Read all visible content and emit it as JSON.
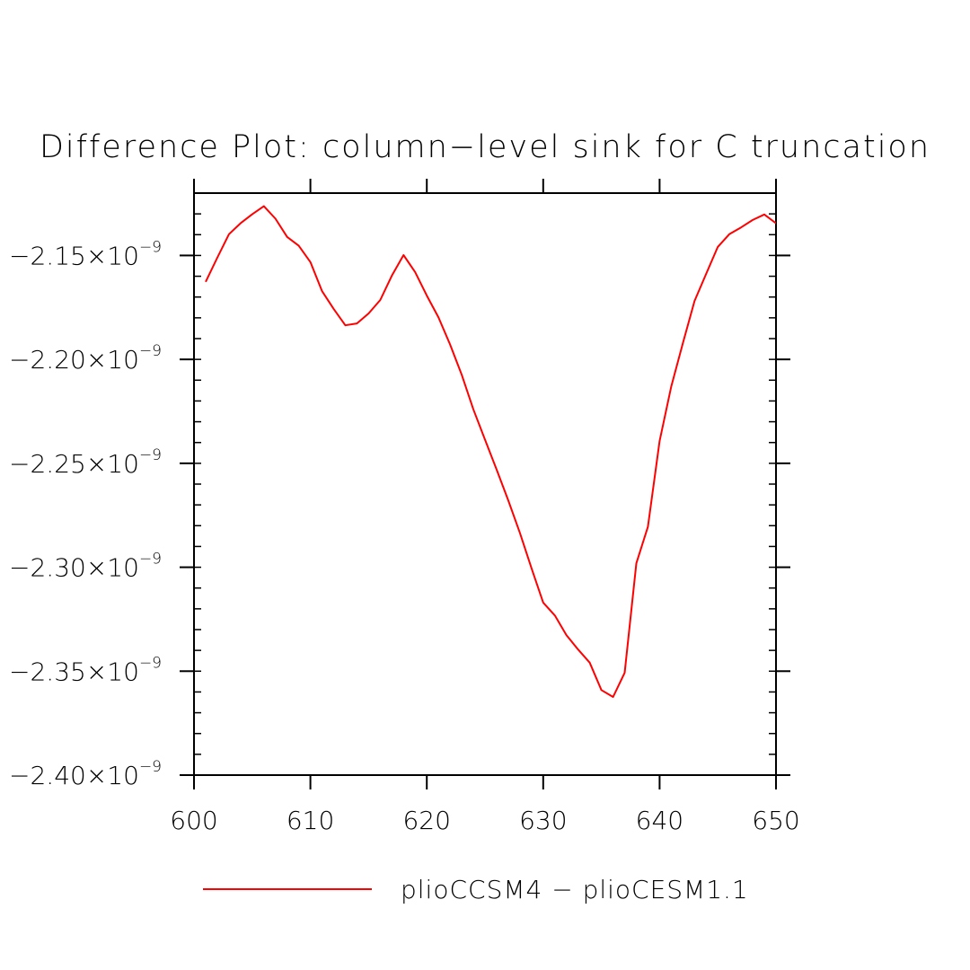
{
  "chart_data": {
    "type": "line",
    "title": "Difference Plot: column−level sink for C truncation",
    "xlabel": "",
    "ylabel": "",
    "xlim": [
      600,
      650
    ],
    "ylim": [
      -2.4e-09,
      -2.12e-09
    ],
    "x_ticks": [
      600,
      610,
      620,
      630,
      640,
      650
    ],
    "x_tick_labels": [
      "600",
      "610",
      "620",
      "630",
      "640",
      "650"
    ],
    "y_ticks": [
      -2.15e-09,
      -2.2e-09,
      -2.25e-09,
      -2.3e-09,
      -2.35e-09,
      -2.4e-09
    ],
    "y_tick_labels": [
      {
        "mantissa": "−2.15×10",
        "exponent": "−9"
      },
      {
        "mantissa": "−2.20×10",
        "exponent": "−9"
      },
      {
        "mantissa": "−2.25×10",
        "exponent": "−9"
      },
      {
        "mantissa": "−2.30×10",
        "exponent": "−9"
      },
      {
        "mantissa": "−2.35×10",
        "exponent": "−9"
      },
      {
        "mantissa": "−2.40×10",
        "exponent": "−9"
      }
    ],
    "grid": false,
    "legend_position": "bottom",
    "series": [
      {
        "name": "plioCCSM4 − plioCESM1.1",
        "color": "#ff0000",
        "x": [
          601,
          602,
          603,
          604,
          605,
          606,
          607,
          608,
          609,
          610,
          611,
          612,
          613,
          614,
          615,
          616,
          617,
          618,
          619,
          620,
          621,
          622,
          623,
          624,
          625,
          626,
          627,
          628,
          629,
          630,
          631,
          632,
          633,
          634,
          635,
          636,
          637,
          638,
          639,
          640,
          641,
          642,
          643,
          644,
          645,
          646,
          647,
          648,
          649,
          650
        ],
        "y": [
          -2.1627e-09,
          -2.1511e-09,
          -2.1398e-09,
          -2.1345e-09,
          -2.1302e-09,
          -2.1263e-09,
          -2.1323e-09,
          -2.1411e-09,
          -2.1453e-09,
          -2.1532e-09,
          -2.1672e-09,
          -2.1757e-09,
          -2.1836e-09,
          -2.1827e-09,
          -2.1779e-09,
          -2.1714e-09,
          -2.1597e-09,
          -2.1498e-09,
          -2.158e-09,
          -2.1693e-09,
          -2.1798e-09,
          -2.1928e-09,
          -2.2074e-09,
          -2.224e-09,
          -2.2386e-09,
          -2.2531e-09,
          -2.2678e-09,
          -2.2835e-09,
          -2.3005e-09,
          -2.317e-09,
          -2.3232e-09,
          -2.3327e-09,
          -2.3396e-09,
          -2.3459e-09,
          -2.3591e-09,
          -2.3624e-09,
          -2.3508e-09,
          -2.2981e-09,
          -2.2805e-09,
          -2.2393e-09,
          -2.213e-09,
          -2.1922e-09,
          -2.1719e-09,
          -2.1589e-09,
          -2.1459e-09,
          -2.1397e-09,
          -2.1365e-09,
          -2.1329e-09,
          -2.1303e-09,
          -2.1345e-09
        ]
      }
    ]
  }
}
